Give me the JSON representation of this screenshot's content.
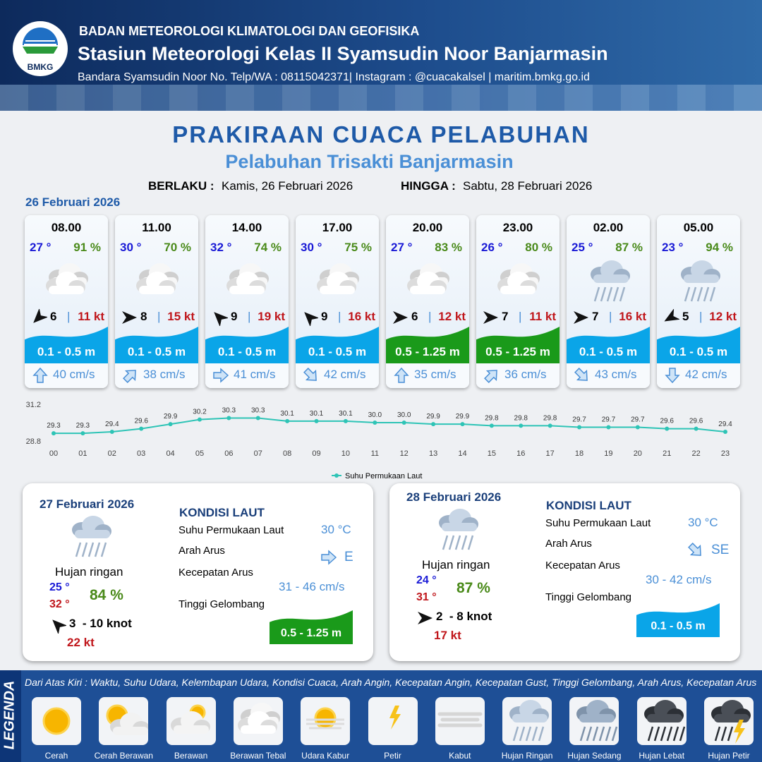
{
  "header": {
    "org": "BADAN METEOROLOGI KLIMATOLOGI DAN GEOFISIKA",
    "station": "Stasiun Meteorologi Kelas II Syamsudin Noor Banjarmasin",
    "contact": "Bandara Syamsudin Noor No. Telp/WA : 08115042371| Instagram : @cuacakalsel | maritim.bmkg.go.id",
    "logo": "BMKG"
  },
  "title": "PRAKIRAAN CUACA PELABUHAN",
  "subtitle": "Pelabuhan Trisakti Banjarmasin",
  "validity": {
    "from_label": "BERLAKU :",
    "from": "Kamis, 26 Februari 2026",
    "to_label": "HINGGA :",
    "to": "Sabtu, 28 Februari 2026"
  },
  "day1": {
    "date": "26 Februari 2026",
    "cards": [
      {
        "time": "08.00",
        "temp": "27 °",
        "humidity": "91 %",
        "condition": "Berawan Tebal",
        "wind_dir": 225,
        "wind": "6",
        "gust": "11 kt",
        "wave": "0.1 - 0.5 m",
        "wave_color": "#0aa5e8",
        "current_dir": 0,
        "current": "40 cm/s"
      },
      {
        "time": "11.00",
        "temp": "30 °",
        "humidity": "70 %",
        "condition": "Berawan Tebal",
        "wind_dir": 90,
        "wind": "8",
        "gust": "15 kt",
        "wave": "0.1 - 0.5 m",
        "wave_color": "#0aa5e8",
        "current_dir": 45,
        "current": "38 cm/s"
      },
      {
        "time": "14.00",
        "temp": "32 °",
        "humidity": "74 %",
        "condition": "Berawan Tebal",
        "wind_dir": 315,
        "wind": "9",
        "gust": "19 kt",
        "wave": "0.1 - 0.5 m",
        "wave_color": "#0aa5e8",
        "current_dir": 90,
        "current": "41 cm/s"
      },
      {
        "time": "17.00",
        "temp": "30 °",
        "humidity": "75 %",
        "condition": "Berawan Tebal",
        "wind_dir": 315,
        "wind": "9",
        "gust": "16 kt",
        "wave": "0.1 - 0.5 m",
        "wave_color": "#0aa5e8",
        "current_dir": 135,
        "current": "42 cm/s"
      },
      {
        "time": "20.00",
        "temp": "27 °",
        "humidity": "83 %",
        "condition": "Berawan Tebal",
        "wind_dir": 90,
        "wind": "6",
        "gust": "12 kt",
        "wave": "0.5 - 1.25 m",
        "wave_color": "#1a9a1a",
        "current_dir": 0,
        "current": "35 cm/s"
      },
      {
        "time": "23.00",
        "temp": "26 °",
        "humidity": "80 %",
        "condition": "Berawan Tebal",
        "wind_dir": 90,
        "wind": "7",
        "gust": "11 kt",
        "wave": "0.5 - 1.25 m",
        "wave_color": "#1a9a1a",
        "current_dir": 45,
        "current": "36 cm/s"
      },
      {
        "time": "02.00",
        "temp": "25 °",
        "humidity": "87 %",
        "condition": "Hujan Ringan",
        "wind_dir": 90,
        "wind": "7",
        "gust": "16 kt",
        "wave": "0.1 - 0.5 m",
        "wave_color": "#0aa5e8",
        "current_dir": 135,
        "current": "43 cm/s"
      },
      {
        "time": "05.00",
        "temp": "23 °",
        "humidity": "94 %",
        "condition": "Hujan Ringan",
        "wind_dir": 240,
        "wind": "5",
        "gust": "12 kt",
        "wave": "0.1 - 0.5 m",
        "wave_color": "#0aa5e8",
        "current_dir": 180,
        "current": "42 cm/s"
      }
    ]
  },
  "chart_data": {
    "type": "line",
    "categories": [
      "00",
      "01",
      "02",
      "03",
      "04",
      "05",
      "06",
      "07",
      "08",
      "09",
      "10",
      "11",
      "12",
      "13",
      "14",
      "15",
      "16",
      "17",
      "18",
      "19",
      "20",
      "21",
      "22",
      "23"
    ],
    "series": [
      {
        "name": "Suhu Permukaan Laut",
        "color": "#2ec4b6",
        "values": [
          29.3,
          29.3,
          29.4,
          29.6,
          29.9,
          30.2,
          30.3,
          30.3,
          30.1,
          30.1,
          30.1,
          30.0,
          30.0,
          29.9,
          29.9,
          29.8,
          29.8,
          29.8,
          29.7,
          29.7,
          29.7,
          29.6,
          29.6,
          29.4
        ],
        "value_labels": [
          "29.3",
          "29.3",
          "29.4",
          "29.6",
          "29.9",
          "30.2",
          "30.3",
          "30.3",
          "30.1",
          "30.1",
          "30.1",
          "30.0",
          "30.0",
          "29.9",
          "29.9",
          "29.8",
          "29.8",
          "29.8",
          "29.7",
          "29.7",
          "29.7",
          "29.6",
          "29.6",
          "29.4"
        ]
      }
    ],
    "ylim": [
      28.8,
      31.2
    ],
    "yticks": [
      28.8,
      31.2
    ],
    "legend": "bottom"
  },
  "summaries": [
    {
      "date": "27 Februari 2026",
      "condition": "Hujan ringan",
      "tmin": "25 °",
      "tmax": "32 °",
      "humidity": "84 %",
      "wind_dir": 315,
      "wind": "3  - 10 knot",
      "gust": "22 kt",
      "sea_title": "KONDISI LAUT",
      "sst_label": "Suhu Permukaan Laut",
      "sst": "30 °C",
      "dir_label": "Arah Arus",
      "current_dir": 90,
      "dir": "E",
      "speed_label": "Kecepatan Arus",
      "speed": "31 - 46 cm/s",
      "wave_label": "Tinggi Gelombang",
      "wave": "0.5 - 1.25 m",
      "wave_color": "#1a9a1a"
    },
    {
      "date": "28 Februari 2026",
      "condition": "Hujan ringan",
      "tmin": "24 °",
      "tmax": "31 °",
      "humidity": "87 %",
      "wind_dir": 90,
      "wind": "2  - 8 knot",
      "gust": "17 kt",
      "sea_title": "KONDISI LAUT",
      "sst_label": "Suhu Permukaan Laut",
      "sst": "30 °C",
      "dir_label": "Arah Arus",
      "current_dir": 135,
      "dir": "SE",
      "speed_label": "Kecepatan Arus",
      "speed": "30 - 42 cm/s",
      "wave_label": "Tinggi Gelombang",
      "wave": "0.1 - 0.5 m",
      "wave_color": "#0aa5e8"
    }
  ],
  "legend": {
    "title": "LEGENDA",
    "description": "Dari Atas Kiri : Waktu, Suhu Udara, Kelembapan Udara, Kondisi Cuaca, Arah Angin, Kecepatan Angin, Kecepatan Gust, Tinggi Gelombang, Arah Arus, Kecepatan Arus",
    "items": [
      "Cerah",
      "Cerah Berawan",
      "Berawan",
      "Berawan Tebal",
      "Udara Kabur",
      "Petir",
      "Kabut",
      "Hujan Ringan",
      "Hujan Sedang",
      "Hujan Lebat",
      "Hujan Petir"
    ]
  }
}
